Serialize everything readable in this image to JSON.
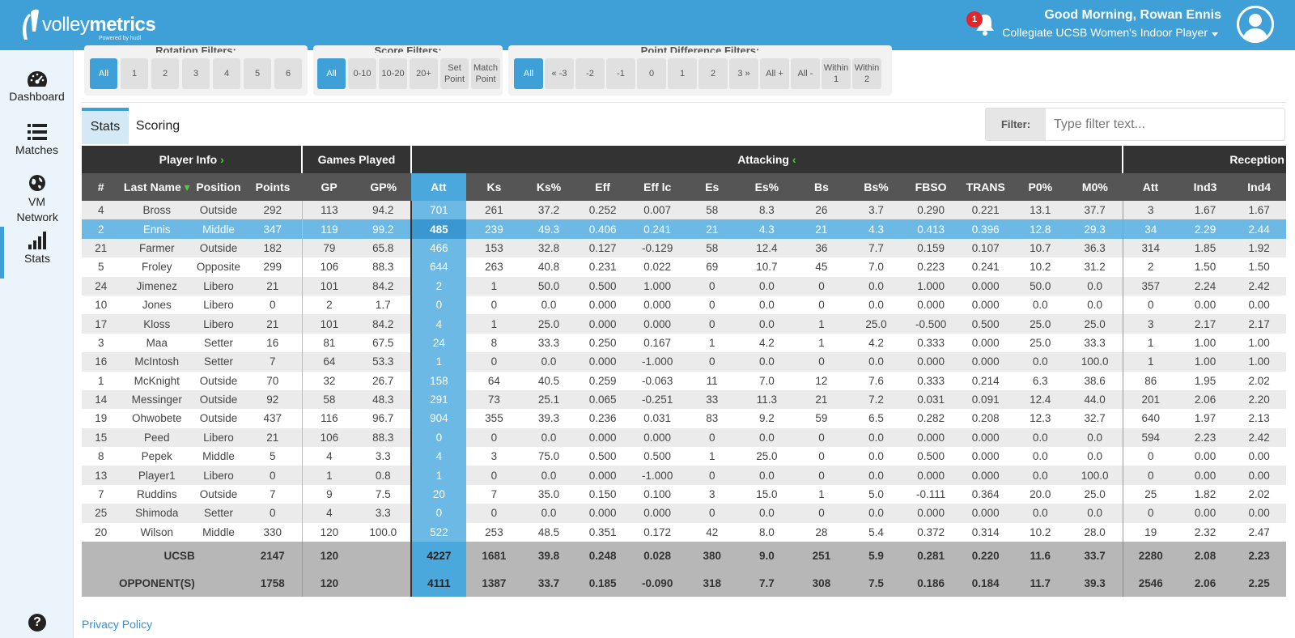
{
  "brand": {
    "name_light": "volley",
    "name_bold": "metrics",
    "powered": "Powered by hudl",
    "color": "#3fa0d8"
  },
  "header": {
    "notification_count": "1",
    "greeting": "Good Morning, Rowan Ennis",
    "role": "Collegiate UCSB Women's Indoor Player"
  },
  "nav": {
    "dashboard": "Dashboard",
    "matches": "Matches",
    "vm_network": "VM Network",
    "stats": "Stats",
    "help": "?"
  },
  "filters": {
    "rotation": {
      "title": "Rotation Filters:",
      "buttons": [
        "All",
        "1",
        "2",
        "3",
        "4",
        "5",
        "6"
      ]
    },
    "score": {
      "title": "Score Filters:",
      "buttons": [
        "All",
        "0-10",
        "10-20",
        "20+",
        "Set Point",
        "Match Point"
      ]
    },
    "point_diff": {
      "title": "Point Difference Filters:",
      "buttons": [
        "All",
        "« -3",
        "-2",
        "-1",
        "0",
        "1",
        "2",
        "3 »",
        "All +",
        "All -",
        "Within 1",
        "Within 2"
      ]
    }
  },
  "tabs": {
    "stats": "Stats",
    "scoring": "Scoring"
  },
  "filter_box": {
    "label": "Filter:",
    "placeholder": "Type filter text..."
  },
  "table": {
    "groups": {
      "player_info": "Player Info",
      "games_played": "Games Played",
      "attacking": "Attacking",
      "reception": "Reception"
    },
    "columns": [
      "#",
      "Last Name",
      "Position",
      "Points",
      "GP",
      "GP%",
      "Att",
      "Ks",
      "Ks%",
      "Eff",
      "Eff lc",
      "Es",
      "Es%",
      "Bs",
      "Bs%",
      "FBSO",
      "TRANS",
      "P0%",
      "M0%",
      "Att",
      "Ind3",
      "Ind4"
    ],
    "rows": [
      [
        "4",
        "Bross",
        "Outside",
        "292",
        "113",
        "94.2",
        "701",
        "261",
        "37.2",
        "0.252",
        "0.007",
        "58",
        "8.3",
        "26",
        "3.7",
        "0.290",
        "0.221",
        "13.1",
        "37.7",
        "3",
        "1.67",
        "1.67"
      ],
      [
        "2",
        "Ennis",
        "Middle",
        "347",
        "119",
        "99.2",
        "485",
        "239",
        "49.3",
        "0.406",
        "0.241",
        "21",
        "4.3",
        "21",
        "4.3",
        "0.413",
        "0.396",
        "12.8",
        "29.3",
        "34",
        "2.29",
        "2.44"
      ],
      [
        "21",
        "Farmer",
        "Outside",
        "182",
        "79",
        "65.8",
        "466",
        "153",
        "32.8",
        "0.127",
        "-0.129",
        "58",
        "12.4",
        "36",
        "7.7",
        "0.159",
        "0.107",
        "10.7",
        "36.3",
        "314",
        "1.85",
        "1.92"
      ],
      [
        "5",
        "Froley",
        "Opposite",
        "299",
        "106",
        "88.3",
        "644",
        "263",
        "40.8",
        "0.231",
        "0.022",
        "69",
        "10.7",
        "45",
        "7.0",
        "0.223",
        "0.241",
        "10.2",
        "31.2",
        "2",
        "1.50",
        "1.50"
      ],
      [
        "24",
        "Jimenez",
        "Libero",
        "21",
        "101",
        "84.2",
        "2",
        "1",
        "50.0",
        "0.500",
        "1.000",
        "0",
        "0.0",
        "0",
        "0.0",
        "1.000",
        "0.000",
        "50.0",
        "0.0",
        "357",
        "2.24",
        "2.42"
      ],
      [
        "10",
        "Jones",
        "Libero",
        "0",
        "2",
        "1.7",
        "0",
        "0",
        "0.0",
        "0.000",
        "0.000",
        "0",
        "0.0",
        "0",
        "0.0",
        "0.000",
        "0.000",
        "0.0",
        "0.0",
        "0",
        "0.00",
        "0.00"
      ],
      [
        "17",
        "Kloss",
        "Libero",
        "21",
        "101",
        "84.2",
        "4",
        "1",
        "25.0",
        "0.000",
        "0.000",
        "0",
        "0.0",
        "1",
        "25.0",
        "-0.500",
        "0.500",
        "25.0",
        "25.0",
        "3",
        "2.17",
        "2.17"
      ],
      [
        "3",
        "Maa",
        "Setter",
        "16",
        "81",
        "67.5",
        "24",
        "8",
        "33.3",
        "0.250",
        "0.167",
        "1",
        "4.2",
        "1",
        "4.2",
        "0.333",
        "0.000",
        "25.0",
        "33.3",
        "1",
        "1.00",
        "1.00"
      ],
      [
        "16",
        "McIntosh",
        "Setter",
        "7",
        "64",
        "53.3",
        "1",
        "0",
        "0.0",
        "0.000",
        "-1.000",
        "0",
        "0.0",
        "0",
        "0.0",
        "0.000",
        "0.000",
        "0.0",
        "100.0",
        "1",
        "1.00",
        "1.00"
      ],
      [
        "1",
        "McKnight",
        "Outside",
        "70",
        "32",
        "26.7",
        "158",
        "64",
        "40.5",
        "0.259",
        "-0.063",
        "11",
        "7.0",
        "12",
        "7.6",
        "0.333",
        "0.214",
        "6.3",
        "38.6",
        "86",
        "1.95",
        "2.02"
      ],
      [
        "14",
        "Messinger",
        "Outside",
        "92",
        "58",
        "48.3",
        "291",
        "73",
        "25.1",
        "0.065",
        "-0.251",
        "33",
        "11.3",
        "21",
        "7.2",
        "0.031",
        "0.091",
        "12.4",
        "44.0",
        "201",
        "2.06",
        "2.20"
      ],
      [
        "19",
        "Ohwobete",
        "Outside",
        "437",
        "116",
        "96.7",
        "904",
        "355",
        "39.3",
        "0.236",
        "0.031",
        "83",
        "9.2",
        "59",
        "6.5",
        "0.282",
        "0.208",
        "12.3",
        "32.7",
        "640",
        "1.97",
        "2.13"
      ],
      [
        "15",
        "Peed",
        "Libero",
        "21",
        "106",
        "88.3",
        "0",
        "0",
        "0.0",
        "0.000",
        "0.000",
        "0",
        "0.0",
        "0",
        "0.0",
        "0.000",
        "0.000",
        "0.0",
        "0.0",
        "594",
        "2.23",
        "2.42"
      ],
      [
        "8",
        "Pepek",
        "Middle",
        "5",
        "4",
        "3.3",
        "4",
        "3",
        "75.0",
        "0.500",
        "0.500",
        "1",
        "25.0",
        "0",
        "0.0",
        "0.500",
        "0.000",
        "0.0",
        "0.0",
        "0",
        "0.00",
        "0.00"
      ],
      [
        "13",
        "Player1",
        "Libero",
        "0",
        "1",
        "0.8",
        "1",
        "0",
        "0.0",
        "0.000",
        "-1.000",
        "0",
        "0.0",
        "0",
        "0.0",
        "0.000",
        "0.000",
        "0.0",
        "100.0",
        "0",
        "0.00",
        "0.00"
      ],
      [
        "7",
        "Ruddins",
        "Outside",
        "7",
        "9",
        "7.5",
        "20",
        "7",
        "35.0",
        "0.150",
        "0.100",
        "3",
        "15.0",
        "1",
        "5.0",
        "-0.111",
        "0.364",
        "20.0",
        "25.0",
        "25",
        "1.82",
        "2.02"
      ],
      [
        "25",
        "Shimoda",
        "Setter",
        "0",
        "4",
        "3.3",
        "0",
        "0",
        "0.0",
        "0.000",
        "0.000",
        "0",
        "0.0",
        "0",
        "0.0",
        "0.000",
        "0.000",
        "0.0",
        "0.0",
        "0",
        "0.00",
        "0.00"
      ],
      [
        "20",
        "Wilson",
        "Middle",
        "330",
        "120",
        "100.0",
        "522",
        "253",
        "48.5",
        "0.351",
        "0.172",
        "42",
        "8.0",
        "28",
        "5.4",
        "0.372",
        "0.314",
        "10.2",
        "28.0",
        "19",
        "2.32",
        "2.47"
      ]
    ],
    "highlighted_row_name": "Ennis",
    "totals": [
      {
        "label": "UCSB",
        "values": [
          "2147",
          "120",
          "",
          "4227",
          "1681",
          "39.8",
          "0.248",
          "0.028",
          "380",
          "9.0",
          "251",
          "5.9",
          "0.281",
          "0.220",
          "11.6",
          "33.7",
          "2280",
          "2.08",
          "2.23"
        ]
      },
      {
        "label": "OPPONENT(S)",
        "values": [
          "1758",
          "120",
          "",
          "4111",
          "1387",
          "33.7",
          "0.185",
          "-0.090",
          "318",
          "7.7",
          "308",
          "7.5",
          "0.186",
          "0.184",
          "11.7",
          "39.3",
          "2546",
          "2.06",
          "2.25"
        ]
      }
    ]
  },
  "footer": {
    "privacy": "Privacy Policy"
  }
}
